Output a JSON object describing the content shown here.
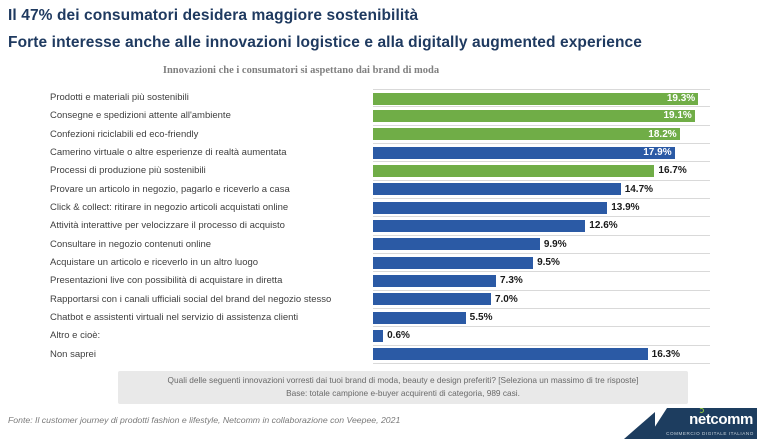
{
  "header": {
    "title_line1": "Il 47% dei consumatori desidera maggiore sostenibilità",
    "title_line2": "Forte interesse anche alle innovazioni logistice e alla digitally augmented experience"
  },
  "chart_data": {
    "type": "bar",
    "orientation": "horizontal",
    "title": "Innovazioni che i consumatori si aspettano dai brand di moda",
    "xlim": [
      0,
      20
    ],
    "grid": "row-separator-lines",
    "colors": {
      "green": "#70ad47",
      "blue": "#2b5aa5",
      "separator": "#d9d9d9"
    },
    "categories": [
      "Prodotti e materiali più sostenibili",
      "Consegne e spedizioni attente all'ambiente",
      "Confezioni riciclabili ed eco-friendly",
      "Camerino virtuale o altre esperienze di realtà aumentata",
      "Processi di produzione più sostenibili",
      "Provare un articolo in negozio, pagarlo e riceverlo a casa",
      "Click & collect: ritirare in negozio articoli acquistati online",
      "Attività interattive per velocizzare il processo di acquisto",
      "Consultare in negozio contenuti online",
      "Acquistare un articolo e riceverlo in un altro luogo",
      "Presentazioni live con possibilità di acquistare in diretta",
      "Rapportarsi con i canali ufficiali social del brand del negozio stesso",
      "Chatbot e assistenti virtuali nel servizio di assistenza clienti",
      "Altro e cioè:",
      "Non saprei"
    ],
    "values": [
      19.3,
      19.1,
      18.2,
      17.9,
      16.7,
      14.7,
      13.9,
      12.6,
      9.9,
      9.5,
      7.3,
      7.0,
      5.5,
      0.6,
      16.3
    ],
    "value_labels": [
      "19.3%",
      "19.1%",
      "18.2%",
      "17.9%",
      "16.7%",
      "14.7%",
      "13.9%",
      "12.6%",
      "9.9%",
      "9.5%",
      "7.3%",
      "7.0%",
      "5.5%",
      "0.6%",
      "16.3%"
    ],
    "bar_colors": [
      "green",
      "green",
      "green",
      "blue",
      "green",
      "blue",
      "blue",
      "blue",
      "blue",
      "blue",
      "blue",
      "blue",
      "blue",
      "blue",
      "blue"
    ],
    "label_inside": [
      true,
      true,
      true,
      true,
      false,
      false,
      false,
      false,
      false,
      false,
      false,
      false,
      false,
      false,
      false
    ]
  },
  "note": {
    "line1": "Quali delle seguenti innovazioni vorresti dai tuoi brand di moda, beauty e design preferiti? [Seleziona un massimo di tre risposte]",
    "line2": "Base: totale campione e-buyer acquirenti di categoria, 989 casi."
  },
  "footer": {
    "source": "Fonte: Il customer journey di prodotti fashion e lifestyle, Netcomm in collaborazione con Veepee, 2021"
  },
  "logo": {
    "wordmark_pre": "n",
    "wordmark_e": "e",
    "wordmark_post": "tcomm",
    "tagline": "COMMERCIO DIGITALE ITALIANO"
  }
}
